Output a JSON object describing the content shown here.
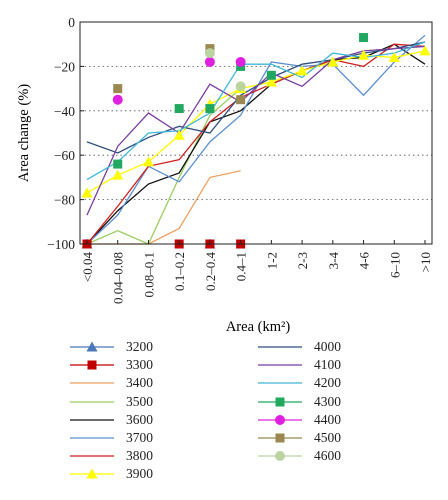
{
  "chart_data": {
    "type": "line",
    "xlabel": "Area (km²)",
    "ylabel": "Area change (%)",
    "ylim": [
      -100,
      0
    ],
    "yticks": [
      0,
      -20,
      -40,
      -60,
      -80,
      -100
    ],
    "grid": "horizontal dotted",
    "legend_placement": "below",
    "categories": [
      "<0.04",
      "0.04–0.08",
      "0.08–0.1",
      "0.1–0.2",
      "0.2–0.4",
      "0.4–1",
      "1-2",
      "2-3",
      "3-4",
      "4-6",
      "6–10",
      ">10"
    ],
    "series": [
      {
        "name": "3200",
        "color": "#4a78b8",
        "marker": "triangle",
        "values": [
          -100,
          null,
          null,
          null,
          -100,
          null,
          null,
          null,
          null,
          null,
          null,
          null
        ]
      },
      {
        "name": "3300",
        "color": "#c00000",
        "marker": "square",
        "values": [
          -100,
          null,
          null,
          -100,
          -100,
          -100,
          null,
          null,
          null,
          null,
          null,
          null
        ]
      },
      {
        "name": "3400",
        "color": "#f0a060",
        "marker": null,
        "values": [
          -100,
          -100,
          -100,
          -93,
          -70,
          -67,
          null,
          null,
          null,
          null,
          null,
          null
        ]
      },
      {
        "name": "3500",
        "color": "#9acd60",
        "marker": null,
        "values": [
          -100,
          -94,
          -100,
          -70,
          -42,
          -30,
          null,
          null,
          null,
          null,
          null,
          null
        ]
      },
      {
        "name": "3600",
        "color": "#111111",
        "marker": null,
        "values": [
          -100,
          -85,
          -73,
          -68,
          -45,
          -40,
          -28,
          -22,
          -17,
          -16,
          -10,
          -19
        ]
      },
      {
        "name": "3700",
        "color": "#5b8fd0",
        "marker": null,
        "values": [
          -100,
          -87,
          -65,
          -72,
          -54,
          -42,
          -18,
          -20,
          -19,
          -33,
          -18,
          -6
        ]
      },
      {
        "name": "3800",
        "color": "#d22020",
        "marker": null,
        "values": [
          -100,
          -83,
          -65,
          -62,
          -45,
          -34,
          -28,
          -22,
          -17,
          -20,
          -10,
          -11
        ]
      },
      {
        "name": "3900",
        "color": "#ffff00",
        "marker": "triangle",
        "values": [
          -77,
          -69,
          -63,
          -51,
          -37,
          -30,
          -27,
          -22,
          -18,
          -15,
          -16,
          -13
        ]
      },
      {
        "name": "4000",
        "color": "#2f4f7f",
        "marker": null,
        "values": [
          -54,
          -59,
          -52,
          -47,
          -50,
          -33,
          -25,
          -19,
          -17,
          -14,
          -12,
          -9
        ]
      },
      {
        "name": "4100",
        "color": "#7b3fa0",
        "marker": null,
        "values": [
          -87,
          -56,
          -41,
          -50,
          -28,
          -36,
          -23,
          -29,
          -17,
          -13,
          -12,
          -11
        ]
      },
      {
        "name": "4200",
        "color": "#40b8d8",
        "marker": null,
        "values": [
          -71,
          -63,
          -50,
          -49,
          -41,
          -19,
          -19,
          -25,
          -14,
          -16,
          -14,
          -9
        ]
      },
      {
        "name": "4300",
        "color": "#20a860",
        "marker": "square",
        "values": [
          null,
          -64,
          null,
          -39,
          -39,
          -20,
          -24,
          null,
          null,
          -7,
          null,
          null
        ]
      },
      {
        "name": "4400",
        "color": "#e020e0",
        "marker": "circle",
        "values": [
          null,
          -35,
          null,
          null,
          -18,
          -18,
          null,
          null,
          null,
          null,
          null,
          null
        ]
      },
      {
        "name": "4500",
        "color": "#9a8850",
        "marker": "square",
        "values": [
          null,
          -30,
          null,
          null,
          -12,
          -35,
          null,
          null,
          null,
          null,
          null,
          null
        ]
      },
      {
        "name": "4600",
        "color": "#bcd4a0",
        "marker": "circle",
        "values": [
          null,
          null,
          null,
          null,
          -14,
          -29,
          null,
          null,
          null,
          null,
          null,
          null
        ]
      }
    ]
  }
}
